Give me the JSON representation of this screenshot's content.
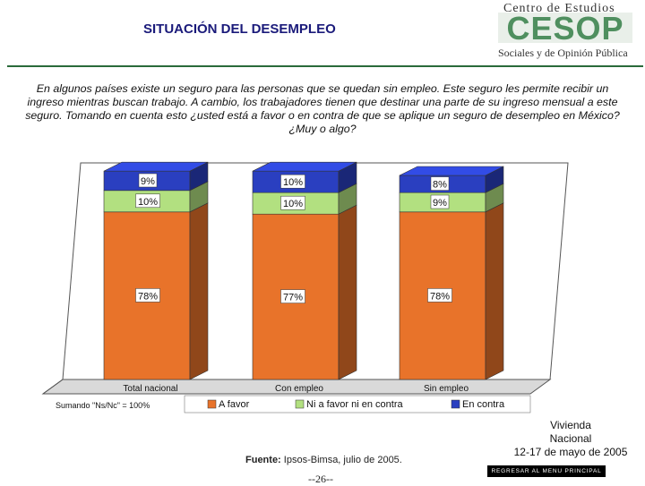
{
  "header": {
    "title": "SITUACIÓN DEL DESEMPLEO",
    "logo_top": "Centro de Estudios",
    "logo_word": "CESOP",
    "logo_bottom": "Sociales y de Opinión Pública"
  },
  "question": "En algunos países existe un seguro para las personas que se quedan sin empleo. Este seguro les permite recibir un ingreso mientras buscan trabajo. A cambio, los trabajadores tienen que destinar una parte de su ingreso mensual a este seguro. Tomando en cuenta esto ¿usted está a favor o en contra de que se aplique un seguro de desempleo en México? ¿Muy o algo?",
  "chart_data": {
    "type": "bar",
    "stacked": true,
    "categories": [
      "Total nacional",
      "Con empleo",
      "Sin empleo"
    ],
    "series": [
      {
        "name": "A favor",
        "values": [
          78,
          77,
          78
        ],
        "labels": [
          "78%",
          "77%",
          "78%"
        ],
        "color": "#e8732a"
      },
      {
        "name": "Ni a favor ni en contra",
        "values": [
          10,
          10,
          9
        ],
        "labels": [
          "10%",
          "10%",
          "9%"
        ],
        "color": "#b2e080"
      },
      {
        "name": "En contra",
        "values": [
          9,
          10,
          8
        ],
        "labels": [
          "9%",
          "10%",
          "8%"
        ],
        "color": "#2a3fc0"
      }
    ],
    "ylim": [
      0,
      100
    ],
    "title": "",
    "xlabel": "",
    "ylabel": "",
    "legend_position": "bottom"
  },
  "footer": {
    "note": "Sumando \"Ns/Nc\" = 100%",
    "source_label": "Fuente:",
    "source_text": " Ipsos-Bimsa, julio de 2005.",
    "page": "--26--",
    "survey_line1": "Vivienda",
    "survey_line2": "Nacional",
    "survey_line3": "12-17 de mayo de 2005",
    "menu_button": "REGRESAR AL MENU PRINCIPAL"
  },
  "colors": {
    "a_favor": "#e8732a",
    "ni_favor": "#b2e080",
    "en_contra": "#2a3fc0",
    "title": "#1a1a7a",
    "logo_green": "#4f8f5f"
  }
}
